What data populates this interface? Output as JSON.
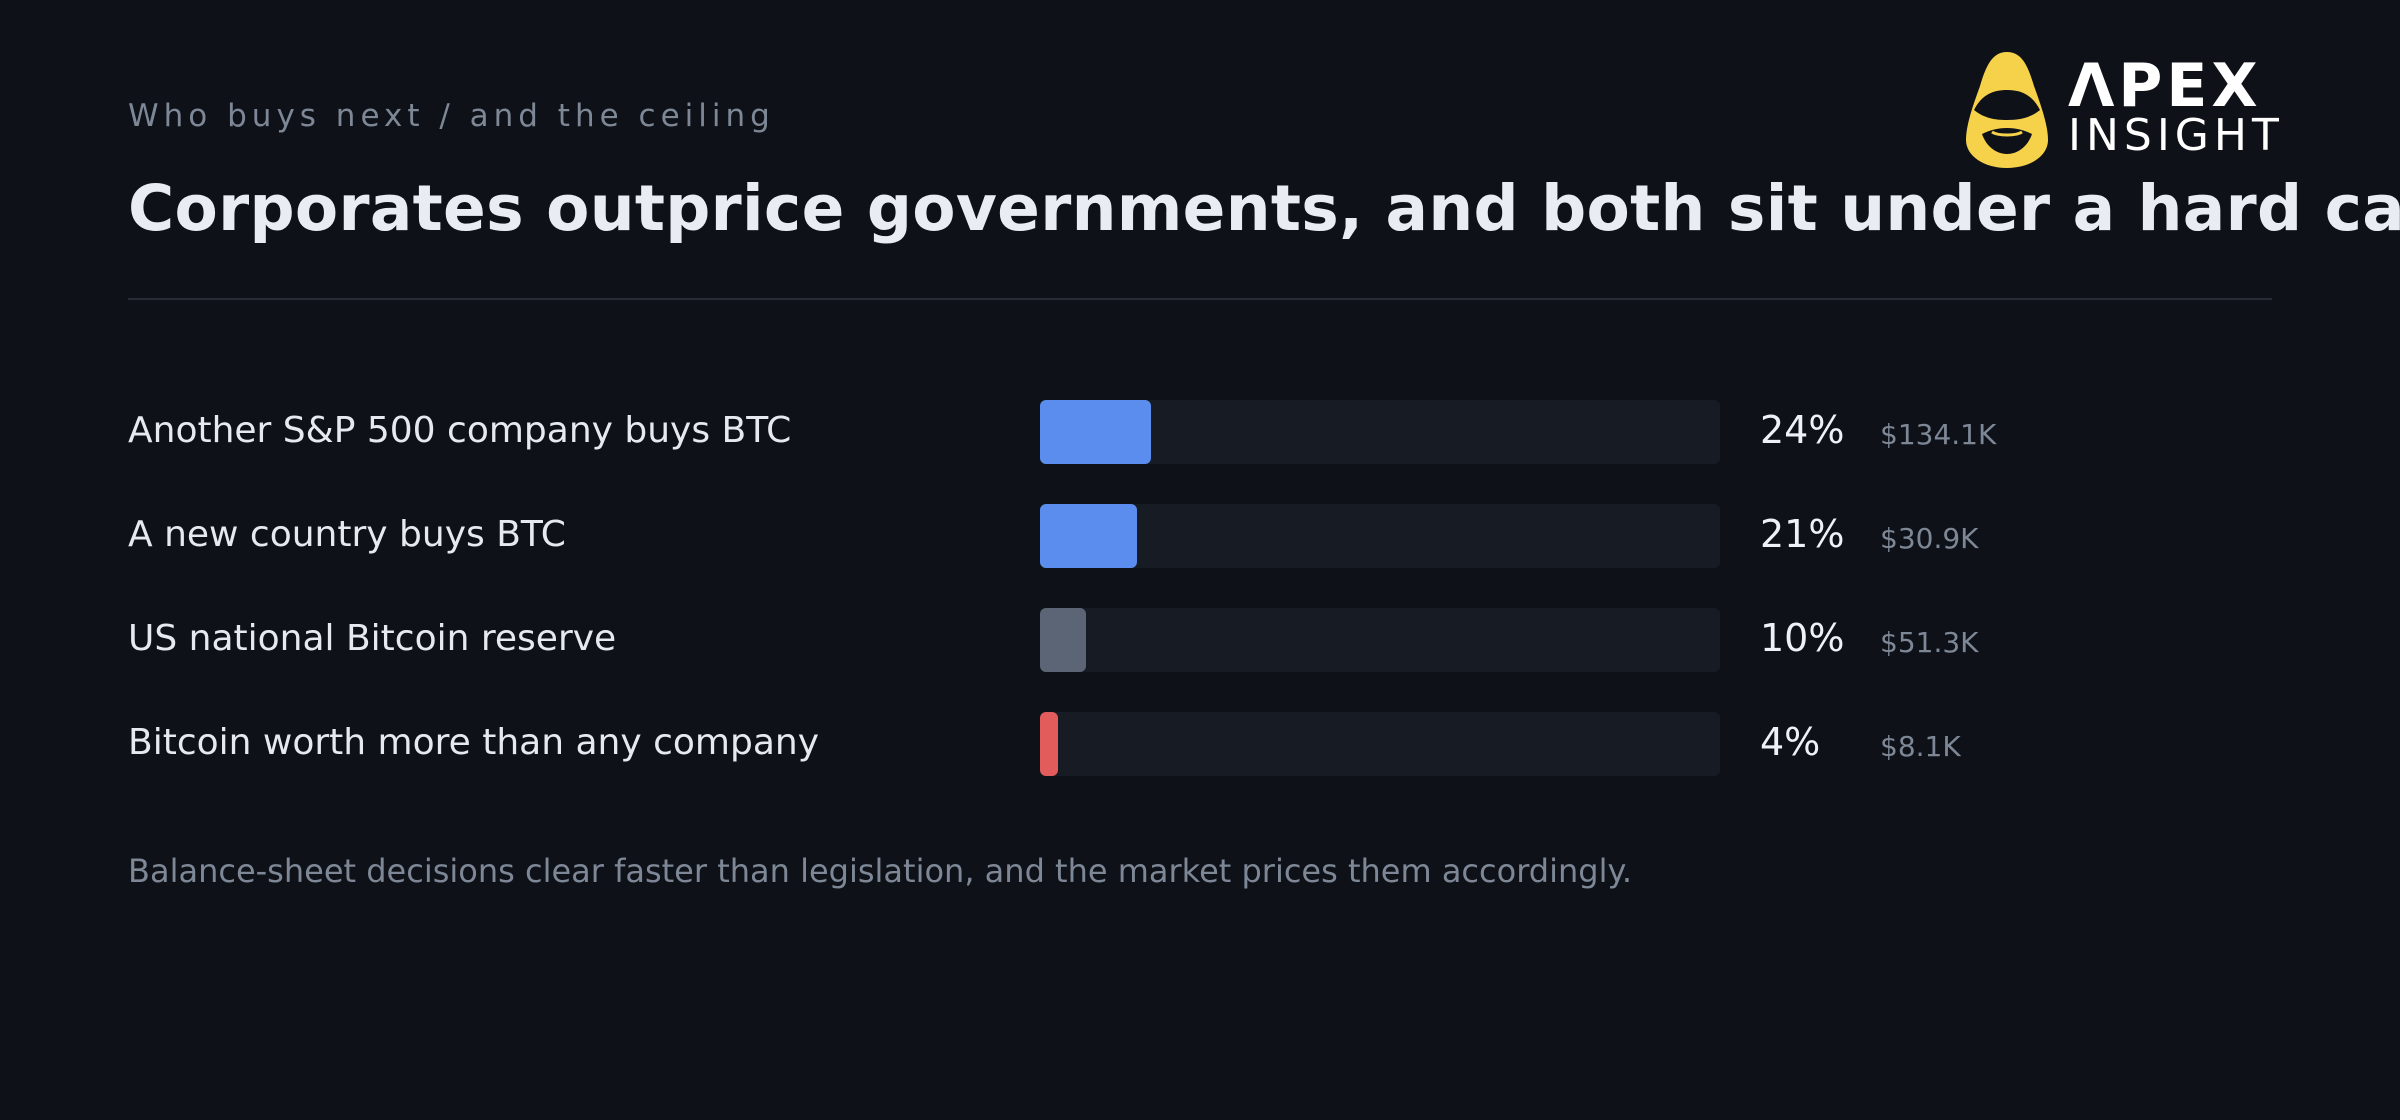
{
  "header": {
    "kicker": "Who buys next / and the ceiling",
    "title": "Corporates outprice governments, and both sit under a hard cap"
  },
  "logo": {
    "wordmark": "ΛPEX",
    "subtitle": "INSIGHT",
    "accent": "#f5d24a"
  },
  "chart_data": {
    "type": "bar",
    "orientation": "horizontal",
    "categories": [
      "Another S&P 500 company buys BTC",
      "A new country buys BTC",
      "US national Bitcoin reserve",
      "Bitcoin worth more than any company"
    ],
    "values": [
      24,
      21,
      10,
      4
    ],
    "value_labels": [
      "24%",
      "21%",
      "10%",
      "4%"
    ],
    "volumes": [
      "$134.1K",
      "$30.9K",
      "$51.3K",
      "$8.1K"
    ],
    "colors": [
      "#5b8def",
      "#5b8def",
      "#5b6575",
      "#e25c5c"
    ],
    "xlim": [
      0,
      100
    ],
    "grid": false
  },
  "footnote": "Balance-sheet decisions clear faster than legislation, and the market prices them accordingly."
}
